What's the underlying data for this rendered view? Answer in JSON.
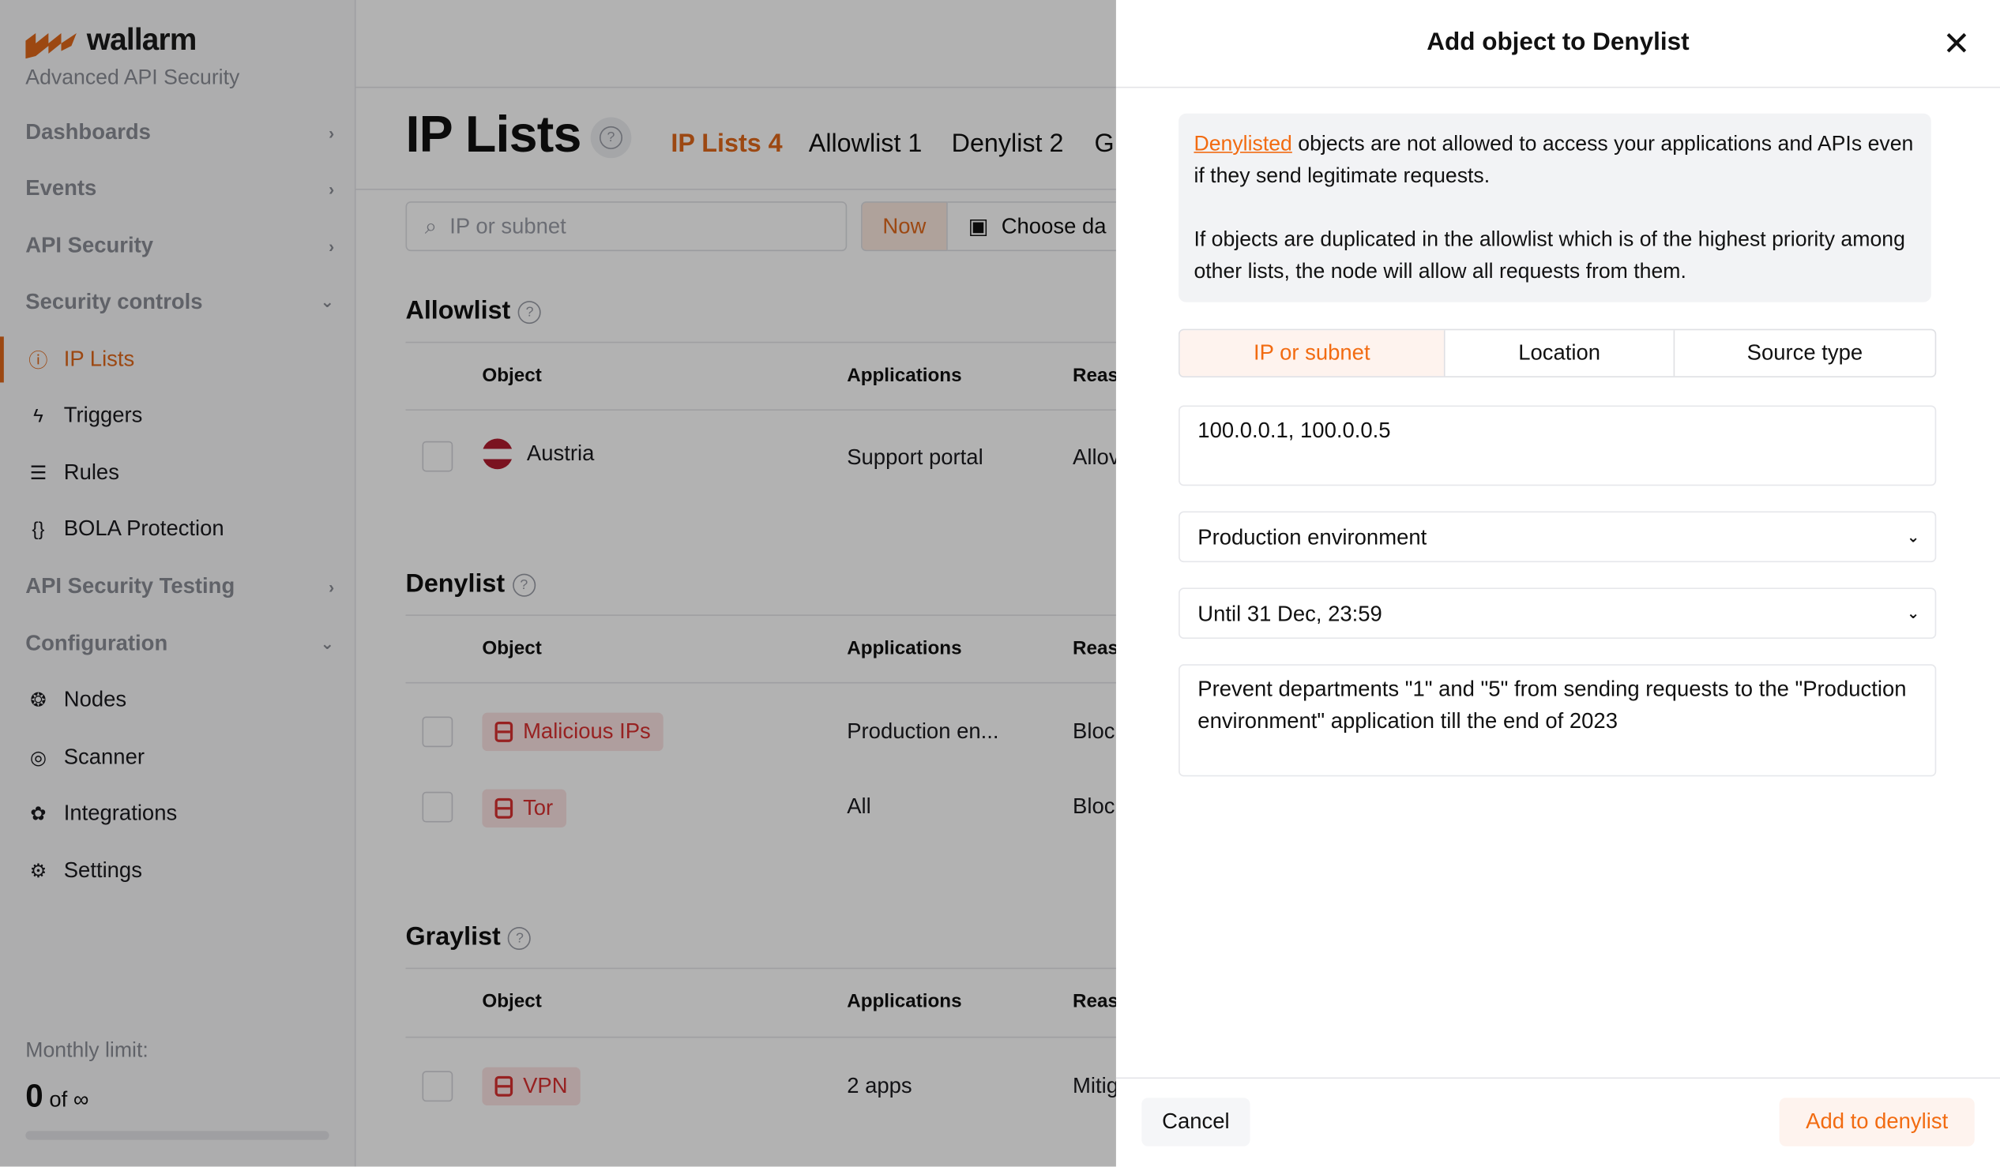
{
  "sidebar": {
    "brand": "wallarm",
    "subtitle": "Advanced API Security",
    "items": [
      {
        "label": "Dashboards",
        "type": "group",
        "chevron": "›"
      },
      {
        "label": "Events",
        "type": "group",
        "chevron": "›"
      },
      {
        "label": "API Security",
        "type": "group",
        "chevron": "›"
      },
      {
        "label": "Security controls",
        "type": "group",
        "chevron": "⌄"
      },
      {
        "label": "IP Lists",
        "type": "item",
        "icon": "ip-icon",
        "glyph": "ⓘ",
        "active": true
      },
      {
        "label": "Triggers",
        "type": "item",
        "icon": "lightning-icon",
        "glyph": "ϟ"
      },
      {
        "label": "Rules",
        "type": "item",
        "icon": "rules-list-icon",
        "glyph": "☰"
      },
      {
        "label": "BOLA Protection",
        "type": "item",
        "icon": "id-braces-icon",
        "glyph": "{}"
      },
      {
        "label": "API Security Testing",
        "type": "group",
        "chevron": "›"
      },
      {
        "label": "Configuration",
        "type": "group",
        "chevron": "⌄"
      },
      {
        "label": "Nodes",
        "type": "item",
        "icon": "nodes-icon",
        "glyph": "❂"
      },
      {
        "label": "Scanner",
        "type": "item",
        "icon": "scanner-icon",
        "glyph": "◎"
      },
      {
        "label": "Integrations",
        "type": "item",
        "icon": "integrations-icon",
        "glyph": "✿"
      },
      {
        "label": "Settings",
        "type": "item",
        "icon": "gear-icon",
        "glyph": "⚙"
      }
    ],
    "monthly_limit_label": "Monthly limit:",
    "monthly_limit_value": "0",
    "monthly_limit_of": "of ∞",
    "monthly_limit_progress": 0
  },
  "main": {
    "title": "IP Lists",
    "help": "?",
    "tabs": [
      {
        "label": "IP Lists 4",
        "active": true
      },
      {
        "label": "Allowlist 1"
      },
      {
        "label": "Denylist 2"
      },
      {
        "label": "G"
      }
    ],
    "search_placeholder": "IP or subnet",
    "now_label": "Now",
    "choose_date_label": "Choose da",
    "columns": {
      "object": "Object",
      "applications": "Applications",
      "reason": "Reas"
    },
    "allowlist": {
      "title": "Allowlist",
      "rows": [
        {
          "object": "Austria",
          "applications": "Support portal",
          "reason": "Allov"
        }
      ]
    },
    "denylist": {
      "title": "Denylist",
      "rows": [
        {
          "object": "Malicious IPs",
          "applications": "Production en...",
          "reason": "Bloc"
        },
        {
          "object": "Tor",
          "applications": "All",
          "reason": "Bloc"
        }
      ]
    },
    "graylist": {
      "title": "Graylist",
      "rows": [
        {
          "object": "VPN",
          "applications": "2 apps",
          "reason": "Mitig"
        }
      ]
    }
  },
  "drawer": {
    "title": "Add object to Denylist",
    "close": "✕",
    "info_link": "Denylisted",
    "info_line1": " objects are not allowed to access your applications and APIs even if they send legitimate requests.",
    "info_line2": "If objects are duplicated in the allowlist which is of the highest priority among other lists, the node will allow all requests from them.",
    "segments": [
      {
        "label": "IP or subnet",
        "active": true
      },
      {
        "label": "Location"
      },
      {
        "label": "Source type"
      }
    ],
    "ip_value": "100.0.0.1, 100.0.0.5",
    "application_value": "Production environment",
    "duration_value": "Until 31 Dec, 23:59",
    "reason_value": "Prevent departments \"1\" and \"5\" from sending requests to the \"Production environment\" application till the end of 2023",
    "cancel_label": "Cancel",
    "submit_label": "Add to denylist"
  },
  "colors": {
    "accent": "#f26b11",
    "danger": "#d93030",
    "info_bg": "#f2f3f5"
  }
}
